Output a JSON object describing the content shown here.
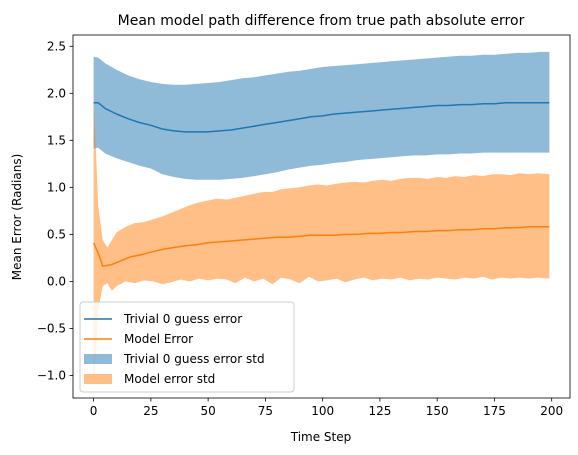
{
  "chart_data": {
    "type": "line",
    "title": "Mean model path difference from true path absolute error",
    "xlabel": "Time Step",
    "ylabel": "Mean Error (Radians)",
    "xlim": [
      -9,
      208
    ],
    "ylim": [
      -1.24,
      2.62
    ],
    "xticks": [
      0,
      25,
      50,
      75,
      100,
      125,
      150,
      175,
      200
    ],
    "yticks": [
      -1.0,
      -0.5,
      0.0,
      0.5,
      1.0,
      1.5,
      2.0,
      2.5
    ],
    "grid": false,
    "legend_position": "lower-left",
    "series": [
      {
        "name": "Trivial 0 guess error",
        "kind": "line",
        "color": "#1f77b4",
        "x": [
          0,
          2,
          5,
          10,
          15,
          20,
          25,
          30,
          35,
          40,
          45,
          50,
          55,
          60,
          65,
          70,
          75,
          80,
          85,
          90,
          95,
          100,
          105,
          110,
          115,
          120,
          125,
          130,
          135,
          140,
          145,
          150,
          155,
          160,
          165,
          170,
          175,
          180,
          185,
          190,
          195,
          199
        ],
        "y": [
          1.9,
          1.9,
          1.84,
          1.78,
          1.73,
          1.69,
          1.66,
          1.62,
          1.6,
          1.59,
          1.59,
          1.59,
          1.6,
          1.61,
          1.63,
          1.65,
          1.67,
          1.69,
          1.71,
          1.73,
          1.75,
          1.76,
          1.78,
          1.79,
          1.8,
          1.81,
          1.82,
          1.83,
          1.84,
          1.85,
          1.86,
          1.87,
          1.87,
          1.88,
          1.88,
          1.89,
          1.89,
          1.9,
          1.9,
          1.9,
          1.9,
          1.9
        ]
      },
      {
        "name": "Model Error",
        "kind": "line",
        "color": "#ff7f0e",
        "x": [
          0,
          2,
          4,
          8,
          12,
          16,
          20,
          25,
          30,
          35,
          40,
          45,
          50,
          55,
          60,
          65,
          70,
          75,
          80,
          85,
          90,
          95,
          100,
          105,
          110,
          115,
          120,
          125,
          130,
          135,
          140,
          145,
          150,
          155,
          160,
          165,
          170,
          175,
          180,
          185,
          190,
          195,
          199
        ],
        "y": [
          0.41,
          0.3,
          0.16,
          0.18,
          0.22,
          0.26,
          0.28,
          0.31,
          0.34,
          0.36,
          0.38,
          0.39,
          0.41,
          0.42,
          0.43,
          0.44,
          0.45,
          0.46,
          0.47,
          0.47,
          0.48,
          0.49,
          0.49,
          0.49,
          0.5,
          0.5,
          0.51,
          0.51,
          0.52,
          0.52,
          0.53,
          0.53,
          0.54,
          0.54,
          0.55,
          0.55,
          0.56,
          0.56,
          0.57,
          0.57,
          0.58,
          0.58,
          0.58
        ]
      },
      {
        "name": "Trivial 0 guess error std",
        "kind": "band",
        "color": "#1f77b4",
        "opacity": 0.5,
        "x": [
          0,
          2,
          5,
          10,
          15,
          20,
          25,
          30,
          35,
          40,
          45,
          50,
          55,
          60,
          65,
          70,
          75,
          80,
          85,
          90,
          95,
          100,
          105,
          110,
          115,
          120,
          125,
          130,
          135,
          140,
          145,
          150,
          155,
          160,
          165,
          170,
          175,
          180,
          185,
          190,
          195,
          199
        ],
        "upper": [
          2.39,
          2.38,
          2.32,
          2.25,
          2.19,
          2.15,
          2.12,
          2.1,
          2.09,
          2.09,
          2.1,
          2.11,
          2.12,
          2.14,
          2.16,
          2.17,
          2.19,
          2.21,
          2.23,
          2.24,
          2.26,
          2.28,
          2.29,
          2.3,
          2.31,
          2.32,
          2.33,
          2.34,
          2.35,
          2.36,
          2.37,
          2.38,
          2.39,
          2.4,
          2.4,
          2.41,
          2.41,
          2.42,
          2.43,
          2.43,
          2.44,
          2.44
        ],
        "lower": [
          1.41,
          1.42,
          1.36,
          1.31,
          1.27,
          1.23,
          1.2,
          1.14,
          1.11,
          1.09,
          1.08,
          1.08,
          1.08,
          1.09,
          1.1,
          1.12,
          1.14,
          1.16,
          1.19,
          1.21,
          1.23,
          1.24,
          1.26,
          1.27,
          1.29,
          1.3,
          1.31,
          1.32,
          1.33,
          1.34,
          1.34,
          1.35,
          1.35,
          1.36,
          1.36,
          1.37,
          1.37,
          1.37,
          1.37,
          1.37,
          1.37,
          1.37
        ]
      },
      {
        "name": "Model error std",
        "kind": "band",
        "color": "#ff7f0e",
        "opacity": 0.5,
        "x": [
          0,
          1,
          2,
          4,
          6,
          8,
          10,
          14,
          18,
          22,
          26,
          30,
          34,
          38,
          42,
          46,
          50,
          54,
          58,
          62,
          66,
          70,
          74,
          78,
          82,
          86,
          90,
          94,
          98,
          102,
          106,
          110,
          114,
          118,
          122,
          126,
          130,
          134,
          138,
          142,
          146,
          150,
          154,
          158,
          162,
          166,
          170,
          174,
          178,
          182,
          186,
          190,
          194,
          199
        ],
        "upper": [
          1.92,
          1.4,
          0.8,
          0.44,
          0.36,
          0.44,
          0.52,
          0.58,
          0.62,
          0.63,
          0.66,
          0.69,
          0.73,
          0.77,
          0.81,
          0.84,
          0.86,
          0.88,
          0.87,
          0.89,
          0.91,
          0.93,
          0.95,
          0.95,
          0.98,
          0.99,
          1.0,
          1.02,
          1.03,
          1.02,
          1.04,
          1.05,
          1.06,
          1.05,
          1.07,
          1.08,
          1.07,
          1.09,
          1.1,
          1.1,
          1.09,
          1.11,
          1.1,
          1.12,
          1.11,
          1.13,
          1.12,
          1.14,
          1.14,
          1.13,
          1.15,
          1.14,
          1.15,
          1.14
        ],
        "lower": [
          -1.1,
          -0.8,
          -0.3,
          -0.05,
          -0.02,
          -0.1,
          -0.05,
          0.0,
          -0.02,
          0.01,
          0.0,
          -0.03,
          -0.01,
          0.02,
          0.0,
          0.03,
          0.01,
          0.03,
          0.02,
          -0.02,
          0.04,
          0.0,
          0.03,
          -0.03,
          0.04,
          0.02,
          -0.02,
          0.05,
          0.0,
          0.01,
          0.03,
          -0.01,
          0.02,
          0.04,
          0.01,
          0.03,
          0.02,
          0.04,
          0.01,
          0.03,
          0.02,
          0.04,
          0.03,
          0.02,
          0.04,
          0.03,
          0.05,
          0.02,
          0.04,
          0.03,
          0.04,
          0.03,
          0.04,
          0.03
        ]
      }
    ]
  }
}
